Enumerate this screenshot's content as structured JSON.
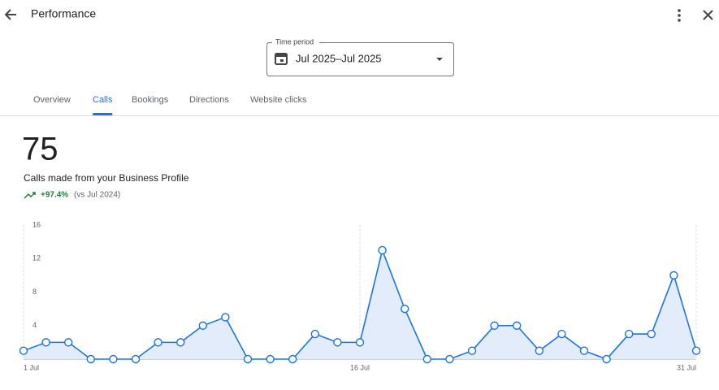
{
  "header": {
    "title": "Performance"
  },
  "time_period": {
    "label": "Time period",
    "value": "Jul 2025–Jul 2025"
  },
  "tabs": [
    "Overview",
    "Calls",
    "Bookings",
    "Directions",
    "Website clicks"
  ],
  "active_tab": 1,
  "summary": {
    "value": "75",
    "description": "Calls made from your Business Profile",
    "change": "+97.4%",
    "comparison": "(vs Jul 2024)"
  },
  "chart_data": {
    "type": "line",
    "x": [
      1,
      2,
      3,
      4,
      5,
      6,
      7,
      8,
      9,
      10,
      11,
      12,
      13,
      14,
      15,
      16,
      17,
      18,
      19,
      20,
      21,
      22,
      23,
      24,
      25,
      26,
      27,
      28,
      29,
      30,
      31
    ],
    "series": [
      {
        "name": "Calls",
        "color": "#1a73e8",
        "values": [
          1,
          2,
          2,
          0,
          0,
          0,
          2,
          2,
          4,
          5,
          0,
          0,
          0,
          3,
          2,
          2,
          13,
          6,
          0,
          0,
          1,
          4,
          4,
          1,
          3,
          1,
          0,
          3,
          3,
          10,
          1
        ]
      }
    ],
    "xlim": [
      1,
      31
    ],
    "xticks": [
      {
        "value": 1,
        "label": "1 Jul"
      },
      {
        "value": 16,
        "label": "16 Jul"
      },
      {
        "value": 31,
        "label": "31 Jul"
      }
    ],
    "ylim": [
      0,
      16
    ],
    "yticks": [
      4,
      8,
      12,
      16
    ],
    "area_color": "#e3ecfb"
  }
}
